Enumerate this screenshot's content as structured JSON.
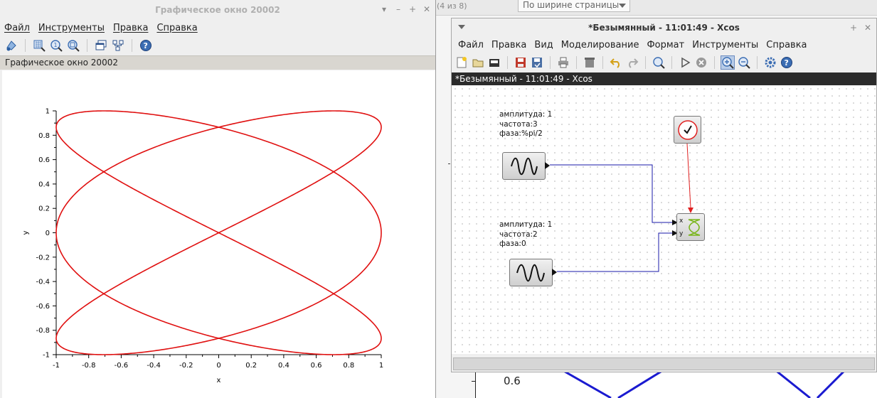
{
  "background": {
    "pager_text": "(4 из 8)",
    "zoom_select": "По ширине страницы",
    "axis_tick_label": "0.6"
  },
  "graphic_window": {
    "title": "Графическое окно 20002",
    "menu": [
      "Файл",
      "Инструменты",
      "Правка",
      "Справка"
    ],
    "toolbar_icons": [
      "datatip-icon",
      "zoom-area-icon",
      "zoom-reset-icon",
      "zoom-mag-icon",
      "window-icon",
      "rotate-icon",
      "help-icon"
    ],
    "caption": "Графическое окно 20002"
  },
  "chart_data": {
    "type": "line",
    "title": "",
    "xlabel": "x",
    "ylabel": "y",
    "xlim": [
      -1,
      1
    ],
    "ylim": [
      -1,
      1
    ],
    "x_ticks": [
      "-1",
      "-0.8",
      "-0.6",
      "-0.4",
      "-0.2",
      "0",
      "0.2",
      "0.4",
      "0.6",
      "0.8",
      "1"
    ],
    "y_ticks": [
      "1",
      "0.8",
      "0.6",
      "0.4",
      "0.2",
      "0",
      "-0.2",
      "-0.4",
      "-0.6",
      "-0.8",
      "-1"
    ],
    "series": [
      {
        "equation_x": "sin(3t + %pi/2)",
        "equation_y": "sin(2t)",
        "color": "#e01010"
      }
    ]
  },
  "xcos_window": {
    "title": "*Безымянный - 11:01:49 - Xcos",
    "menu": [
      "Файл",
      "Правка",
      "Вид",
      "Моделирование",
      "Формат",
      "Инструменты",
      "Справка"
    ],
    "subtitle": "*Безымянный - 11:01:49 - Xcos",
    "blocks": {
      "generator1_label": [
        "амплитуда: 1",
        "частота:3",
        "фаза:%pi/2"
      ],
      "generator2_label": [
        "амплитуда: 1",
        "частота:2",
        "фаза:0"
      ],
      "scope_ports": [
        "x",
        "y"
      ]
    },
    "colors": {
      "link_blue": "#1a1aa8",
      "event_red": "#e02020",
      "scope_green": "#7ab51d"
    }
  }
}
